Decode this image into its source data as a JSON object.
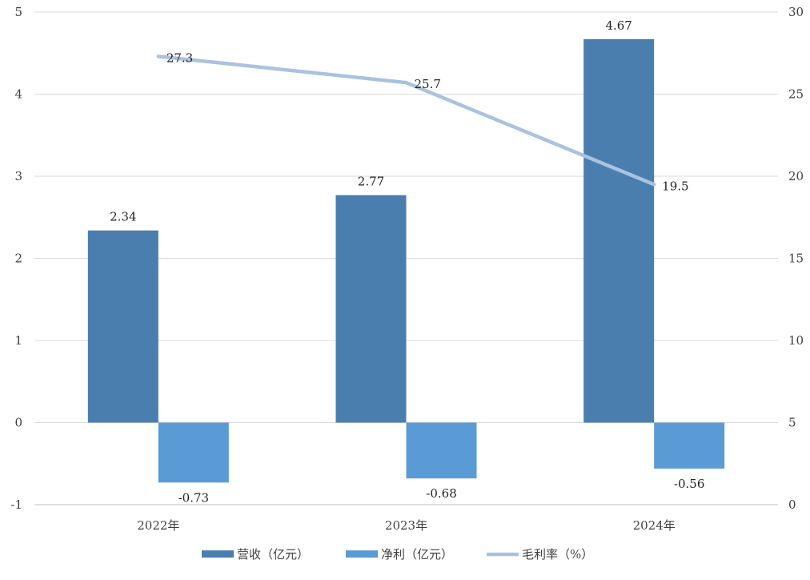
{
  "chart_data": {
    "type": "bar",
    "categories": [
      "2022年",
      "2023年",
      "2024年"
    ],
    "series": [
      {
        "name": "营收（亿元）",
        "type": "bar",
        "axis": "left",
        "color": "#4a7eae",
        "values": [
          2.34,
          2.77,
          4.67
        ],
        "labels": [
          "2.34",
          "2.77",
          "4.67"
        ]
      },
      {
        "name": "净利（亿元）",
        "type": "bar",
        "axis": "left",
        "color": "#5b9bd5",
        "values": [
          -0.73,
          -0.68,
          -0.56
        ],
        "labels": [
          "-0.73",
          "-0.68",
          "-0.56"
        ]
      },
      {
        "name": "毛利率（%）",
        "type": "line",
        "axis": "right",
        "color": "#a9c2e0",
        "values": [
          27.3,
          25.7,
          19.5
        ],
        "labels": [
          "27.3",
          "25.7",
          "19.5"
        ]
      }
    ],
    "y_left": {
      "ylim": [
        -1,
        5
      ],
      "ticks": [
        "-1",
        "0",
        "1",
        "2",
        "3",
        "4",
        "5"
      ]
    },
    "y_right": {
      "ylim": [
        0,
        30
      ],
      "ticks": [
        "0",
        "5",
        "10",
        "15",
        "20",
        "25",
        "30"
      ]
    },
    "grid": true,
    "legend_position": "bottom",
    "title": "",
    "xlabel": "",
    "ylabel": ""
  }
}
